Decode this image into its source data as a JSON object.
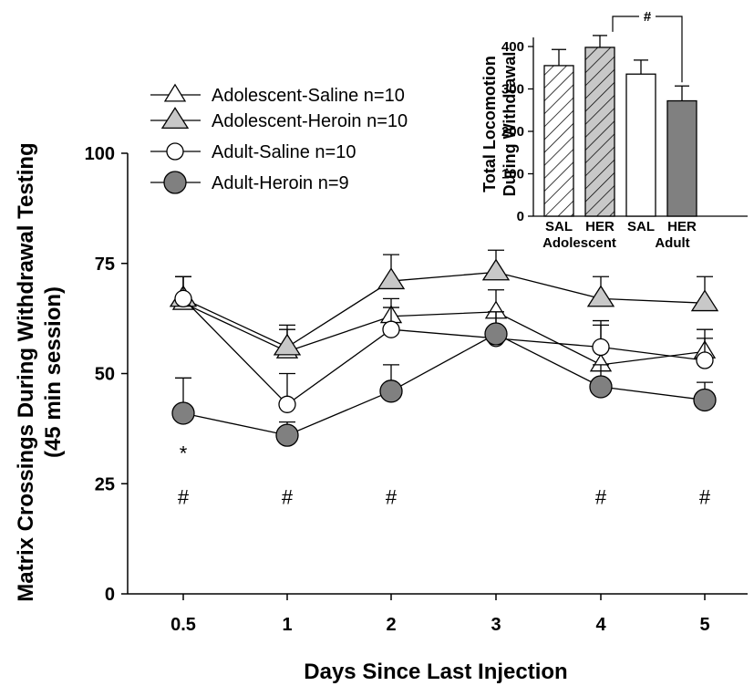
{
  "chart_data": [
    {
      "type": "line",
      "xlabel": "Days Since Last Injection",
      "ylabel_line1": "Matrix Crossings During Withdrawal Testing",
      "ylabel_line2": "(45 min session)",
      "categories": [
        "0.5",
        "1",
        "2",
        "3",
        "4",
        "5"
      ],
      "ylim": [
        0,
        100
      ],
      "yticks": [
        "0",
        "25",
        "50",
        "75",
        "100"
      ],
      "legend_position": "top-left",
      "series": [
        {
          "name": "Adolescent-Saline n=10",
          "marker": "triangle",
          "fill": "#ffffff",
          "marker_size": "small",
          "values": [
            66,
            55,
            63,
            64,
            52,
            55
          ],
          "errors": [
            6,
            5,
            4,
            5,
            9,
            5
          ]
        },
        {
          "name": "Adolescent-Heroin n=10",
          "marker": "triangle",
          "fill": "#c8c8c8",
          "marker_size": "large",
          "values": [
            67,
            56,
            71,
            73,
            67,
            66
          ],
          "errors": [
            5,
            5,
            6,
            5,
            5,
            6
          ]
        },
        {
          "name": "Adult-Saline n=10",
          "marker": "circle",
          "fill": "#ffffff",
          "marker_size": "small",
          "values": [
            67,
            43,
            60,
            58,
            56,
            53
          ],
          "errors": [
            5,
            7,
            5,
            6,
            6,
            5
          ]
        },
        {
          "name": "Adult-Heroin n=9",
          "marker": "circle",
          "fill": "#808080",
          "marker_size": "large",
          "values": [
            41,
            36,
            46,
            59,
            47,
            44
          ],
          "errors": [
            8,
            3,
            6,
            5,
            5,
            4
          ]
        }
      ],
      "annotations": [
        {
          "text": "*",
          "x": "0.5",
          "y": 32
        },
        {
          "text": "#",
          "x": "0.5",
          "y": 22
        },
        {
          "text": "#",
          "x": "1",
          "y": 22
        },
        {
          "text": "#",
          "x": "2",
          "y": 22
        },
        {
          "text": "#",
          "x": "4",
          "y": 22
        },
        {
          "text": "#",
          "x": "5",
          "y": 22
        }
      ]
    },
    {
      "type": "bar",
      "ylabel_line1": "Total Locomotion",
      "ylabel_line2": "During Withdrawal",
      "categories": [
        "SAL",
        "HER",
        "SAL",
        "HER"
      ],
      "groups": [
        "Adolescent",
        "Adult"
      ],
      "values": [
        355,
        398,
        335,
        272
      ],
      "errors": [
        38,
        28,
        33,
        35
      ],
      "bar_styles": [
        "hatch-white",
        "hatch-gray",
        "white",
        "gray"
      ],
      "ylim": [
        0,
        400
      ],
      "yticks": [
        "0",
        "100",
        "200",
        "300",
        "400"
      ],
      "significance": {
        "text": "#",
        "between": [
          "HER",
          "HER"
        ]
      }
    }
  ]
}
